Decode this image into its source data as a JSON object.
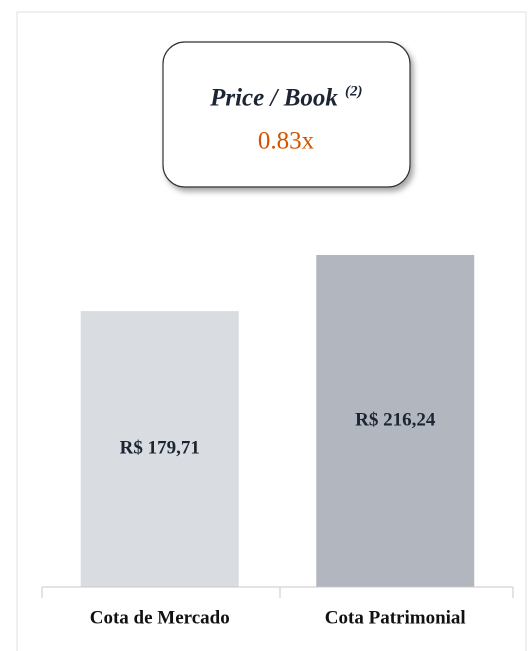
{
  "chart_data": {
    "type": "bar",
    "annotation": {
      "title": "Price / Book",
      "superscript": "(2)",
      "value": "0.83x"
    },
    "categories": [
      "Cota de Mercado",
      "Cota Patrimonial"
    ],
    "values": [
      179.71,
      216.24
    ],
    "value_labels": [
      "R$ 179,71",
      "R$ 216,24"
    ],
    "colors": [
      "#d9dce1",
      "#b2b7bf"
    ]
  }
}
